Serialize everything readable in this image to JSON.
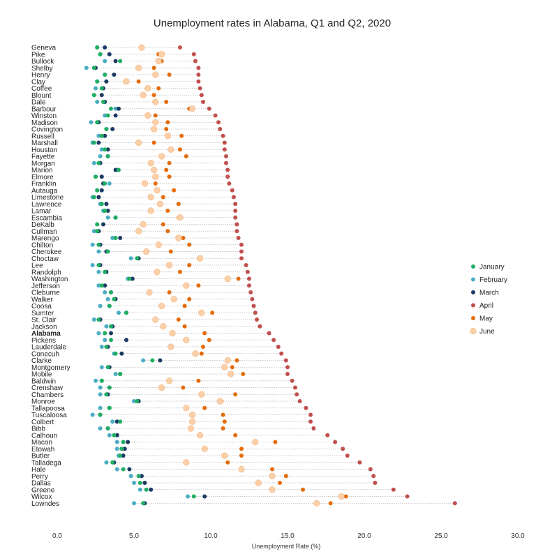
{
  "chart_data": {
    "type": "scatter",
    "title": "Unemployment rates in Alabama, Q1 and Q2, 2020",
    "xlabel": "Unemployment Rate (%)",
    "ylabel": "",
    "xlim": [
      0,
      30
    ],
    "xticks": [
      "0.0",
      "5.0",
      "10.0",
      "15.0",
      "20.0",
      "25.0",
      "30.0"
    ],
    "grid": false,
    "legend_position": "right",
    "colors": {
      "January": "#1fae62",
      "February": "#4badc3",
      "March": "#1c3b63",
      "April": "#c0504d",
      "May": "#e46c0a",
      "June": "#fbd0a9",
      "connector": "#b8b8b8"
    },
    "series_names": [
      "January",
      "February",
      "March",
      "April",
      "May",
      "June"
    ],
    "highlight": "Alabama",
    "counties": [
      {
        "name": "Geneva",
        "values": [
          2.6,
          2.6,
          3.1,
          8.0,
          5.5,
          5.5
        ]
      },
      {
        "name": "Pike",
        "values": [
          2.8,
          2.8,
          3.4,
          8.9,
          6.6,
          6.8
        ]
      },
      {
        "name": "Bullock",
        "values": [
          4.1,
          3.1,
          3.8,
          9.0,
          6.8,
          6.6
        ]
      },
      {
        "name": "Shelby",
        "values": [
          2.4,
          1.9,
          2.5,
          9.2,
          6.3,
          5.3
        ]
      },
      {
        "name": "Henry",
        "values": [
          3.1,
          3.1,
          3.7,
          9.2,
          7.3,
          6.4
        ]
      },
      {
        "name": "Clay",
        "values": [
          2.6,
          2.6,
          3.2,
          9.2,
          5.3,
          4.5
        ]
      },
      {
        "name": "Coffee",
        "values": [
          2.9,
          2.5,
          3.0,
          9.3,
          6.6,
          5.9
        ]
      },
      {
        "name": "Blount",
        "values": [
          2.4,
          2.4,
          2.9,
          9.4,
          6.3,
          5.6
        ]
      },
      {
        "name": "Dale",
        "values": [
          3.0,
          2.6,
          3.1,
          9.5,
          7.1,
          6.4
        ]
      },
      {
        "name": "Barbour",
        "values": [
          3.5,
          3.8,
          4.0,
          9.9,
          8.6,
          8.8
        ]
      },
      {
        "name": "Winston",
        "values": [
          3.3,
          3.1,
          3.8,
          10.3,
          6.4,
          5.9
        ]
      },
      {
        "name": "Madison",
        "values": [
          2.6,
          2.2,
          2.7,
          10.5,
          7.2,
          6.4
        ]
      },
      {
        "name": "Covington",
        "values": [
          3.2,
          3.2,
          3.6,
          10.6,
          7.1,
          6.3
        ]
      },
      {
        "name": "Russell",
        "values": [
          2.9,
          2.7,
          3.1,
          10.8,
          8.1,
          7.2
        ]
      },
      {
        "name": "Marshall",
        "values": [
          2.4,
          2.3,
          2.7,
          10.9,
          6.3,
          5.3
        ]
      },
      {
        "name": "Houston",
        "values": [
          3.1,
          2.9,
          3.3,
          10.9,
          8.0,
          7.4
        ]
      },
      {
        "name": "Fayette",
        "values": [
          3.3,
          2.8,
          3.3,
          11.0,
          8.4,
          6.8
        ]
      },
      {
        "name": "Morgan",
        "values": [
          2.7,
          2.4,
          2.8,
          11.0,
          7.3,
          6.1
        ]
      },
      {
        "name": "Marion",
        "values": [
          4.0,
          3.9,
          3.8,
          11.1,
          7.1,
          6.3
        ]
      },
      {
        "name": "Elmore",
        "values": [
          2.5,
          2.5,
          2.9,
          11.1,
          7.3,
          6.4
        ]
      },
      {
        "name": "Franklin",
        "values": [
          3.1,
          3.4,
          3.0,
          11.2,
          6.4,
          5.7
        ]
      },
      {
        "name": "Autauga",
        "values": [
          2.6,
          2.6,
          2.9,
          11.4,
          7.6,
          6.5
        ]
      },
      {
        "name": "Limestone",
        "values": [
          2.4,
          2.3,
          2.7,
          11.5,
          6.9,
          6.1
        ]
      },
      {
        "name": "Lawrence",
        "values": [
          2.9,
          2.8,
          3.2,
          11.6,
          7.9,
          6.7
        ]
      },
      {
        "name": "Lamar",
        "values": [
          3.1,
          3.0,
          3.3,
          11.6,
          7.2,
          6.1
        ]
      },
      {
        "name": "Escambia",
        "values": [
          3.8,
          3.3,
          3.8,
          11.6,
          7.9,
          8.0
        ]
      },
      {
        "name": "DeKalb",
        "values": [
          2.6,
          2.6,
          3.0,
          11.7,
          6.9,
          5.6
        ]
      },
      {
        "name": "Cullman",
        "values": [
          2.6,
          2.4,
          2.7,
          11.7,
          7.2,
          5.3
        ]
      },
      {
        "name": "Marengo",
        "values": [
          3.8,
          3.6,
          4.1,
          11.8,
          8.2,
          7.9
        ]
      },
      {
        "name": "Chilton",
        "values": [
          2.7,
          2.3,
          2.8,
          12.0,
          8.6,
          6.6
        ]
      },
      {
        "name": "Cherokee",
        "values": [
          3.3,
          2.7,
          3.2,
          12.0,
          7.4,
          5.8
        ]
      },
      {
        "name": "Choctaw",
        "values": [
          5.2,
          4.8,
          5.3,
          12.0,
          9.3,
          9.3
        ]
      },
      {
        "name": "Lee",
        "values": [
          2.7,
          2.3,
          2.8,
          12.3,
          8.6,
          7.3
        ]
      },
      {
        "name": "Randolph",
        "values": [
          3.1,
          2.7,
          3.2,
          12.4,
          8.0,
          6.5
        ]
      },
      {
        "name": "Washington",
        "values": [
          4.7,
          4.6,
          4.9,
          12.5,
          11.8,
          11.1
        ]
      },
      {
        "name": "Jefferson",
        "values": [
          2.9,
          2.7,
          3.1,
          12.5,
          9.2,
          8.4
        ]
      },
      {
        "name": "Cleburne",
        "values": [
          3.5,
          3.1,
          3.5,
          12.6,
          7.3,
          6.0
        ]
      },
      {
        "name": "Walker",
        "values": [
          3.7,
          3.3,
          3.8,
          12.7,
          8.6,
          7.6
        ]
      },
      {
        "name": "Coosa",
        "values": [
          3.4,
          2.8,
          3.4,
          12.8,
          8.3,
          6.8
        ]
      },
      {
        "name": "Sumter",
        "values": [
          4.5,
          4.0,
          4.5,
          12.9,
          10.1,
          9.4
        ]
      },
      {
        "name": "St. Clair",
        "values": [
          2.7,
          2.4,
          2.8,
          13.0,
          7.9,
          6.4
        ]
      },
      {
        "name": "Jackson",
        "values": [
          3.5,
          3.2,
          3.6,
          13.2,
          8.3,
          6.9
        ]
      },
      {
        "name": "Alabama",
        "values": [
          3.1,
          2.7,
          3.5,
          13.8,
          9.6,
          7.5
        ]
      },
      {
        "name": "Pickens",
        "values": [
          3.5,
          3.1,
          4.5,
          14.1,
          9.9,
          8.4
        ]
      },
      {
        "name": "Lauderdale",
        "values": [
          3.2,
          2.9,
          3.3,
          14.4,
          9.5,
          7.4
        ]
      },
      {
        "name": "Conecuh",
        "values": [
          3.8,
          3.7,
          4.2,
          14.6,
          9.4,
          9.0
        ]
      },
      {
        "name": "Clarke",
        "values": [
          6.2,
          5.6,
          6.7,
          14.9,
          11.7,
          11.1
        ]
      },
      {
        "name": "Montgomery",
        "values": [
          3.3,
          2.9,
          3.4,
          15.0,
          11.4,
          10.9
        ]
      },
      {
        "name": "Mobile",
        "values": [
          4.1,
          3.8,
          4.1,
          15.0,
          12.1,
          11.3
        ]
      },
      {
        "name": "Baldwin",
        "values": [
          2.9,
          2.5,
          2.9,
          15.3,
          9.2,
          7.3
        ]
      },
      {
        "name": "Crenshaw",
        "values": [
          3.4,
          2.8,
          3.4,
          15.5,
          8.2,
          6.8
        ]
      },
      {
        "name": "Chambers",
        "values": [
          3.2,
          2.8,
          3.3,
          15.6,
          11.6,
          9.4
        ]
      },
      {
        "name": "Monroe",
        "values": [
          5.2,
          5.0,
          5.3,
          15.8,
          10.7,
          10.6
        ]
      },
      {
        "name": "Tallapoosa",
        "values": [
          3.4,
          2.8,
          3.4,
          16.2,
          9.6,
          8.4
        ]
      },
      {
        "name": "Tuscaloosa",
        "values": [
          2.8,
          2.3,
          2.8,
          16.5,
          10.8,
          8.8
        ]
      },
      {
        "name": "Colbert",
        "values": [
          4.1,
          3.6,
          3.9,
          16.5,
          10.9,
          8.8
        ]
      },
      {
        "name": "Bibb",
        "values": [
          3.3,
          2.8,
          3.3,
          16.7,
          10.8,
          8.7
        ]
      },
      {
        "name": "Calhoun",
        "values": [
          3.7,
          3.4,
          3.9,
          17.6,
          11.6,
          9.3
        ]
      },
      {
        "name": "Macon",
        "values": [
          4.3,
          3.9,
          4.6,
          18.1,
          14.2,
          12.9
        ]
      },
      {
        "name": "Etowah",
        "values": [
          4.2,
          3.9,
          4.4,
          18.6,
          12.0,
          9.6
        ]
      },
      {
        "name": "Butler",
        "values": [
          4.1,
          4.0,
          4.3,
          18.9,
          12.0,
          10.9
        ]
      },
      {
        "name": "Talladega",
        "values": [
          3.6,
          3.2,
          3.7,
          19.7,
          11.1,
          8.4
        ]
      },
      {
        "name": "Hale",
        "values": [
          4.3,
          3.9,
          4.7,
          20.4,
          14.0,
          12.0
        ]
      },
      {
        "name": "Perry",
        "values": [
          5.3,
          4.8,
          5.5,
          20.6,
          14.9,
          14.0
        ]
      },
      {
        "name": "Dallas",
        "values": [
          5.4,
          5.0,
          5.7,
          20.7,
          14.5,
          13.1
        ]
      },
      {
        "name": "Greene",
        "values": [
          5.8,
          5.4,
          6.1,
          21.9,
          16.0,
          14.0
        ]
      },
      {
        "name": "Wilcox",
        "values": [
          8.9,
          8.5,
          9.6,
          22.8,
          18.8,
          18.5
        ]
      },
      {
        "name": "Lowndes",
        "values": [
          5.6,
          5.0,
          5.7,
          25.9,
          17.8,
          16.9
        ]
      }
    ]
  }
}
